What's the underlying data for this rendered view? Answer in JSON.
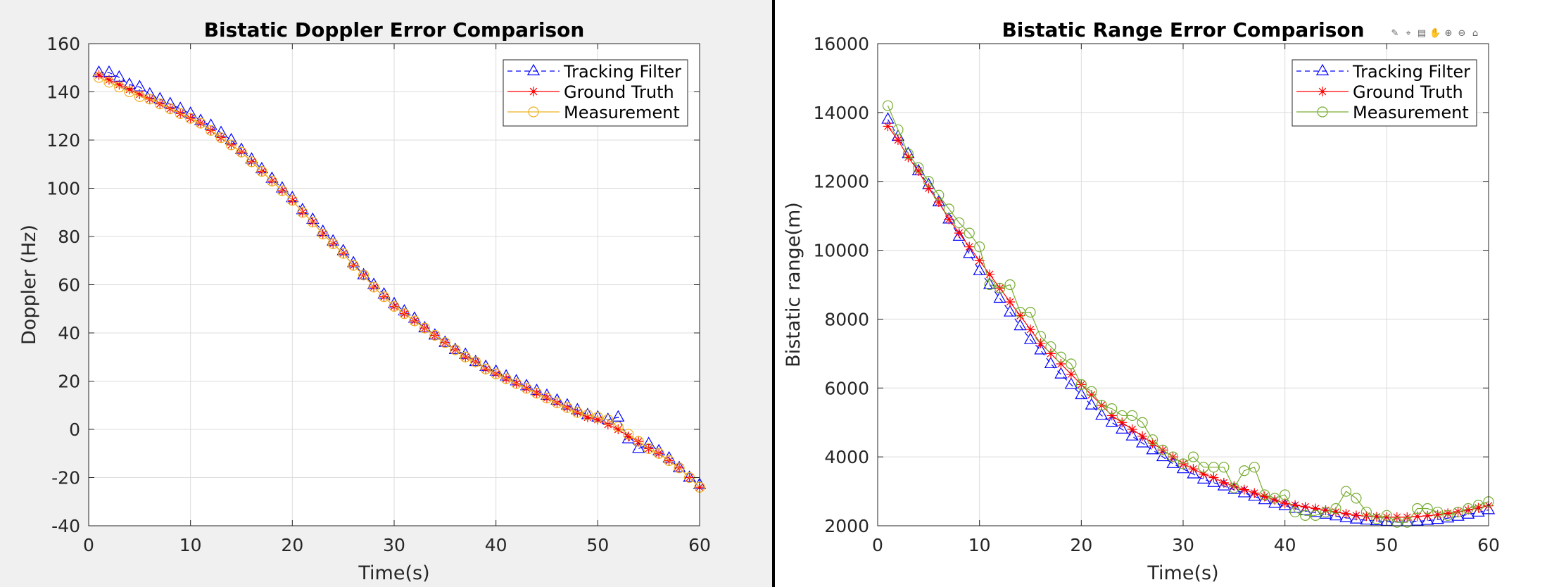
{
  "figure_toolbar": {
    "icons": [
      "brush-icon",
      "datatip-icon",
      "legend-icon",
      "pan-icon",
      "zoom-in-icon",
      "zoom-out-icon",
      "home-icon"
    ]
  },
  "chart_data": [
    {
      "type": "line",
      "title": "Bistatic Doppler Error Comparison",
      "xlabel": "Time(s)",
      "ylabel": "Doppler (Hz)",
      "xlim": [
        0,
        60
      ],
      "ylim": [
        -40,
        160
      ],
      "xticks": [
        0,
        10,
        20,
        30,
        40,
        50,
        60
      ],
      "yticks": [
        -40,
        -20,
        0,
        20,
        40,
        60,
        80,
        100,
        120,
        140,
        160
      ],
      "xtick_labels": [
        "0",
        "10",
        "20",
        "30",
        "40",
        "50",
        "60"
      ],
      "ytick_labels": [
        "-40",
        "-20",
        "0",
        "20",
        "40",
        "60",
        "80",
        "100",
        "120",
        "140",
        "160"
      ],
      "grid": true,
      "legend_position": "top-right",
      "x": [
        1,
        2,
        3,
        4,
        5,
        6,
        7,
        8,
        9,
        10,
        11,
        12,
        13,
        14,
        15,
        16,
        17,
        18,
        19,
        20,
        21,
        22,
        23,
        24,
        25,
        26,
        27,
        28,
        29,
        30,
        31,
        32,
        33,
        34,
        35,
        36,
        37,
        38,
        39,
        40,
        41,
        42,
        43,
        44,
        45,
        46,
        47,
        48,
        49,
        50,
        51,
        52,
        53,
        54,
        55,
        56,
        57,
        58,
        59,
        60
      ],
      "series": [
        {
          "name": "Tracking Filter",
          "color": "#0000ff",
          "dash": "dashed",
          "marker": "triangle",
          "values": [
            148,
            148,
            146,
            143,
            142,
            139,
            137,
            135,
            133,
            131,
            128,
            126,
            123,
            120,
            116,
            112,
            108,
            104,
            100,
            96,
            91,
            87,
            82,
            78,
            74,
            69,
            64,
            60,
            56,
            52,
            49,
            46,
            42,
            39,
            36,
            33,
            31,
            28,
            26,
            24,
            22,
            20,
            18,
            16,
            14,
            12,
            10,
            8,
            6,
            5,
            4,
            5,
            -4,
            -8,
            -6,
            -9,
            -12,
            -16,
            -20,
            -23
          ]
        },
        {
          "name": "Ground Truth",
          "color": "#ff0000",
          "dash": "solid",
          "marker": "asterisk",
          "values": [
            147,
            145,
            143,
            141,
            139,
            137,
            135,
            133,
            131,
            129,
            127,
            124,
            121,
            118,
            115,
            111,
            107,
            103,
            99,
            95,
            90,
            86,
            81,
            77,
            73,
            68,
            64,
            59,
            55,
            51,
            48,
            45,
            42,
            39,
            36,
            33,
            30,
            28,
            25,
            23,
            21,
            19,
            17,
            15,
            13,
            11,
            9,
            7,
            5,
            4,
            2,
            0,
            -3,
            -5,
            -8,
            -10,
            -13,
            -16,
            -20,
            -24
          ]
        },
        {
          "name": "Measurement",
          "color": "#edb120",
          "dash": "solid",
          "marker": "circle",
          "values": [
            146,
            144,
            142,
            140,
            138,
            137,
            135,
            133,
            131,
            129,
            127,
            124,
            121,
            118,
            115,
            111,
            107,
            103,
            99,
            95,
            90,
            86,
            81,
            77,
            73,
            68,
            64,
            59,
            55,
            51,
            48,
            45,
            42,
            39,
            36,
            33,
            30,
            28,
            25,
            23,
            21,
            19,
            17,
            15,
            13,
            11,
            9,
            7,
            6,
            5,
            4,
            1,
            -2,
            -5,
            -8,
            -10,
            -13,
            -16,
            -20,
            -24
          ]
        }
      ]
    },
    {
      "type": "line",
      "title": "Bistatic Range Error Comparison",
      "xlabel": "Time(s)",
      "ylabel": "Bistatic range(m)",
      "xlim": [
        0,
        60
      ],
      "ylim": [
        2000,
        16000
      ],
      "xticks": [
        0,
        10,
        20,
        30,
        40,
        50,
        60
      ],
      "yticks": [
        2000,
        4000,
        6000,
        8000,
        10000,
        12000,
        14000,
        16000
      ],
      "xtick_labels": [
        "0",
        "10",
        "20",
        "30",
        "40",
        "50",
        "60"
      ],
      "ytick_labels": [
        "2000",
        "4000",
        "6000",
        "8000",
        "10000",
        "12000",
        "14000",
        "16000"
      ],
      "grid": true,
      "legend_position": "top-right",
      "x": [
        1,
        2,
        3,
        4,
        5,
        6,
        7,
        8,
        9,
        10,
        11,
        12,
        13,
        14,
        15,
        16,
        17,
        18,
        19,
        20,
        21,
        22,
        23,
        24,
        25,
        26,
        27,
        28,
        29,
        30,
        31,
        32,
        33,
        34,
        35,
        36,
        37,
        38,
        39,
        40,
        41,
        42,
        43,
        44,
        45,
        46,
        47,
        48,
        49,
        50,
        51,
        52,
        53,
        54,
        55,
        56,
        57,
        58,
        59,
        60
      ],
      "series": [
        {
          "name": "Tracking Filter",
          "color": "#0000ff",
          "dash": "dashed",
          "marker": "triangle",
          "values": [
            13800,
            13300,
            12800,
            12300,
            11900,
            11400,
            10900,
            10400,
            9900,
            9400,
            9000,
            8600,
            8200,
            7800,
            7400,
            7100,
            6700,
            6400,
            6100,
            5800,
            5500,
            5200,
            5000,
            4800,
            4600,
            4400,
            4200,
            4000,
            3800,
            3650,
            3500,
            3350,
            3250,
            3150,
            3050,
            2950,
            2850,
            2750,
            2650,
            2580,
            2500,
            2430,
            2380,
            2330,
            2280,
            2230,
            2190,
            2160,
            2140,
            2120,
            2110,
            2110,
            2130,
            2150,
            2180,
            2220,
            2270,
            2330,
            2390,
            2460
          ]
        },
        {
          "name": "Ground Truth",
          "color": "#ff0000",
          "dash": "solid",
          "marker": "asterisk",
          "values": [
            13600,
            13200,
            12700,
            12300,
            11800,
            11400,
            10900,
            10500,
            10100,
            9700,
            9300,
            8900,
            8500,
            8100,
            7700,
            7300,
            7000,
            6700,
            6400,
            6100,
            5800,
            5500,
            5200,
            5000,
            4800,
            4600,
            4400,
            4200,
            4000,
            3800,
            3650,
            3500,
            3400,
            3250,
            3150,
            3050,
            2950,
            2850,
            2750,
            2650,
            2600,
            2550,
            2500,
            2450,
            2400,
            2350,
            2300,
            2280,
            2260,
            2250,
            2250,
            2250,
            2270,
            2290,
            2320,
            2360,
            2410,
            2460,
            2520,
            2580
          ]
        },
        {
          "name": "Measurement",
          "color": "#77ac30",
          "dash": "solid",
          "marker": "circle",
          "values": [
            14200,
            13500,
            12800,
            12400,
            12000,
            11600,
            11200,
            10800,
            10500,
            10100,
            9000,
            8900,
            9000,
            8200,
            8200,
            7500,
            7200,
            6900,
            6700,
            6100,
            5900,
            5500,
            5400,
            5200,
            5200,
            5000,
            4500,
            4200,
            4000,
            3800,
            4000,
            3700,
            3700,
            3700,
            3100,
            3600,
            3700,
            2900,
            2800,
            2900,
            2400,
            2300,
            2300,
            2400,
            2500,
            3000,
            2800,
            2400,
            2200,
            2300,
            2100,
            2100,
            2500,
            2500,
            2400,
            2300,
            2400,
            2500,
            2600,
            2700
          ]
        }
      ]
    }
  ]
}
